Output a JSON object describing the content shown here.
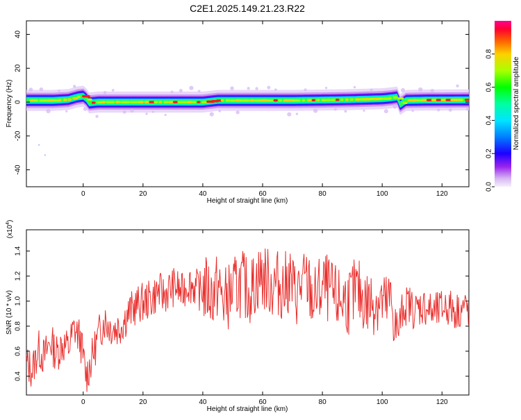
{
  "title": "C2E1.2025.149.21.23.R22",
  "chart_data": [
    {
      "type": "heatmap",
      "xlabel": "Height of straight line (km)",
      "ylabel": "Frequency (Hz)",
      "xlim": [
        -19,
        129
      ],
      "ylim": [
        -50,
        48
      ],
      "xticks": [
        0,
        20,
        40,
        60,
        80,
        100,
        120
      ],
      "yticks": [
        -40,
        -20,
        0,
        20,
        40
      ],
      "colorbar": {
        "label": "Normalized spectral amplitude",
        "range": [
          0,
          1
        ],
        "ticks": [
          0.0,
          0.2,
          0.4,
          0.6,
          0.8
        ]
      },
      "ridge_center_hz": [
        [
          -19,
          1
        ],
        [
          -10,
          1
        ],
        [
          -5,
          1.5
        ],
        [
          -2,
          3
        ],
        [
          0,
          3.5
        ],
        [
          1,
          2
        ],
        [
          2,
          -0.5
        ],
        [
          5,
          0
        ],
        [
          20,
          0
        ],
        [
          40,
          0
        ],
        [
          45,
          1
        ],
        [
          50,
          1
        ],
        [
          60,
          1
        ],
        [
          70,
          1
        ],
        [
          80,
          1.2
        ],
        [
          90,
          1.5
        ],
        [
          100,
          2
        ],
        [
          103,
          2.5
        ],
        [
          105,
          3
        ],
        [
          106,
          -1.5
        ],
        [
          108,
          1
        ],
        [
          115,
          1.2
        ],
        [
          129,
          1.3
        ]
      ],
      "outliers": [
        [
          -15,
          -25
        ],
        [
          -13,
          -31
        ]
      ]
    },
    {
      "type": "line",
      "xlabel": "Height of straight line (km)",
      "ylabel": "SNR (10 * v/v)",
      "multiplier": "(x10^4)",
      "xlim": [
        -19,
        129
      ],
      "ylim": [
        0.25,
        1.57
      ],
      "xticks": [
        0,
        20,
        40,
        60,
        80,
        100,
        120
      ],
      "yticks": [
        0.4,
        0.6,
        0.8,
        1.0,
        1.2,
        1.4
      ],
      "color": "#e8302e",
      "series": [
        {
          "x": [
            -19,
            -17,
            -15,
            -13,
            -11,
            -9,
            -7,
            -5,
            -3,
            -1,
            1,
            3,
            5,
            7,
            9,
            11,
            13,
            15,
            17,
            19,
            21,
            23,
            25,
            27,
            29,
            31,
            33,
            35,
            37,
            39,
            41,
            43,
            45,
            47,
            49,
            51,
            53,
            55,
            57,
            59,
            61,
            63,
            65,
            67,
            69,
            71,
            73,
            75,
            77,
            79,
            81,
            83,
            85,
            87,
            89,
            91,
            93,
            95,
            97,
            99,
            101,
            103,
            105,
            107,
            109,
            111,
            113,
            115,
            117,
            119,
            121,
            123,
            125,
            127,
            129
          ],
          "y": [
            0.5,
            0.45,
            0.62,
            0.55,
            0.68,
            0.58,
            0.66,
            0.62,
            0.78,
            0.7,
            0.4,
            0.55,
            0.72,
            0.85,
            0.8,
            0.78,
            0.82,
            0.9,
            0.95,
            0.98,
            1.0,
            1.02,
            1.08,
            1.05,
            1.1,
            1.12,
            1.06,
            1.15,
            1.12,
            1.08,
            1.1,
            1.05,
            1.12,
            1.0,
            1.05,
            1.1,
            1.15,
            1.08,
            1.12,
            1.2,
            1.18,
            1.12,
            1.15,
            1.1,
            1.18,
            1.05,
            1.12,
            1.15,
            1.0,
            1.08,
            1.12,
            1.05,
            1.0,
            1.02,
            1.0,
            1.08,
            1.05,
            0.98,
            1.0,
            1.02,
            0.95,
            1.0,
            0.72,
            0.95,
            0.98,
            0.92,
            0.96,
            0.95,
            0.9,
            0.92,
            0.96,
            0.94,
            0.92,
            0.95,
            0.93
          ]
        }
      ]
    }
  ]
}
